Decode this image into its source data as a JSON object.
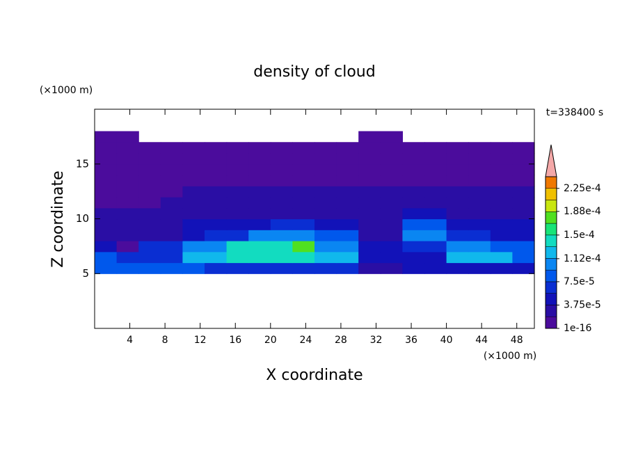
{
  "chart_data": {
    "type": "contour",
    "title": "density of cloud",
    "x_label": "X coordinate",
    "y_label": "Z coordinate",
    "x_unit": "(×1000 m)",
    "y_unit": "(×1000 m)",
    "annotation": "t=338400 s",
    "xlim": [
      0,
      50
    ],
    "ylim": [
      0,
      20
    ],
    "xticks": [
      4,
      8,
      12,
      16,
      20,
      24,
      28,
      32,
      36,
      40,
      44,
      48
    ],
    "yticks": [
      5,
      10,
      15
    ],
    "x": [
      1.25,
      3.75,
      6.25,
      8.75,
      11.25,
      13.75,
      16.25,
      18.75,
      21.25,
      23.75,
      26.25,
      28.75,
      31.25,
      33.75,
      36.25,
      38.75,
      41.25,
      43.75,
      46.25,
      48.75
    ],
    "y": [
      4.5,
      5.5,
      6.5,
      7.5,
      8.5,
      9.5,
      10.5,
      11.5,
      12.5,
      13.5,
      14.5,
      15.5,
      16.5,
      17.5
    ],
    "z": [
      [
        0,
        0,
        0,
        0,
        0,
        0,
        0,
        0,
        0,
        0,
        0,
        0,
        0,
        0,
        0,
        0,
        0,
        0,
        0,
        0
      ],
      [
        8e-05,
        8e-05,
        8e-05,
        8e-05,
        8e-05,
        6e-05,
        6e-05,
        6e-05,
        6e-05,
        6e-05,
        6e-05,
        6e-05,
        3e-05,
        3e-05,
        5e-05,
        5e-05,
        5e-05,
        5e-05,
        5e-05,
        5e-05
      ],
      [
        8e-05,
        7e-05,
        7e-05,
        7e-05,
        0.00012,
        0.00012,
        0.000135,
        0.000135,
        0.000135,
        0.000135,
        0.00012,
        0.00012,
        4e-05,
        4e-05,
        5e-05,
        5e-05,
        0.000115,
        0.000115,
        0.000115,
        9e-05
      ],
      [
        4e-05,
        1e-05,
        6e-05,
        6e-05,
        0.0001,
        0.0001,
        0.000145,
        0.000145,
        0.000145,
        0.00017,
        0.000105,
        0.000105,
        4e-05,
        4e-05,
        6e-05,
        6e-05,
        0.00011,
        0.00011,
        8e-05,
        8e-05
      ],
      [
        3e-05,
        3e-05,
        2e-05,
        2e-05,
        5e-05,
        7e-05,
        7e-05,
        0.00011,
        0.00011,
        0.00011,
        8e-05,
        8e-05,
        3e-05,
        3e-05,
        0.0001,
        0.0001,
        6e-05,
        6e-05,
        4e-05,
        4e-05
      ],
      [
        2.5e-05,
        2.5e-05,
        2.5e-05,
        2.5e-05,
        4.5e-05,
        4.5e-05,
        4.5e-05,
        4.5e-05,
        7e-05,
        7e-05,
        4e-05,
        4e-05,
        3e-05,
        3e-05,
        8e-05,
        8e-05,
        4.5e-05,
        4.5e-05,
        4.5e-05,
        4.5e-05
      ],
      [
        2.8e-05,
        2.8e-05,
        2.8e-05,
        2.8e-05,
        2.8e-05,
        2.8e-05,
        2.8e-05,
        2.8e-05,
        2.8e-05,
        2.8e-05,
        2.8e-05,
        2.8e-05,
        2.8e-05,
        2.8e-05,
        4e-05,
        4e-05,
        2.8e-05,
        2.8e-05,
        2.8e-05,
        2.8e-05
      ],
      [
        1.2e-05,
        1.2e-05,
        1.2e-05,
        2.5e-05,
        2.5e-05,
        2.5e-05,
        2.5e-05,
        2.5e-05,
        2.5e-05,
        2.5e-05,
        2.5e-05,
        2.5e-05,
        2.5e-05,
        2.5e-05,
        2.5e-05,
        2.5e-05,
        2.5e-05,
        2.5e-05,
        2.5e-05,
        2.5e-05
      ],
      [
        1.2e-05,
        1.2e-05,
        1.2e-05,
        1.2e-05,
        2.2e-05,
        2.2e-05,
        2.2e-05,
        2.2e-05,
        2.2e-05,
        2.2e-05,
        2.2e-05,
        2.2e-05,
        2.2e-05,
        2.2e-05,
        2.2e-05,
        2.2e-05,
        2.2e-05,
        2.2e-05,
        2.2e-05,
        2.2e-05
      ],
      [
        1e-05,
        1e-05,
        1e-05,
        1e-05,
        1e-05,
        1e-05,
        1e-05,
        1e-05,
        1e-05,
        1e-05,
        1e-05,
        1e-05,
        1e-05,
        1e-05,
        1e-05,
        1e-05,
        1e-05,
        1e-05,
        1e-05,
        1e-05
      ],
      [
        8e-06,
        8e-06,
        8e-06,
        8e-06,
        8e-06,
        8e-06,
        8e-06,
        8e-06,
        8e-06,
        8e-06,
        8e-06,
        8e-06,
        8e-06,
        8e-06,
        8e-06,
        8e-06,
        8e-06,
        8e-06,
        8e-06,
        8e-06
      ],
      [
        8e-06,
        8e-06,
        8e-06,
        8e-06,
        8e-06,
        8e-06,
        8e-06,
        8e-06,
        8e-06,
        8e-06,
        8e-06,
        8e-06,
        8e-06,
        8e-06,
        8e-06,
        8e-06,
        8e-06,
        8e-06,
        8e-06,
        8e-06
      ],
      [
        8e-06,
        8e-06,
        8e-06,
        8e-06,
        8e-06,
        8e-06,
        8e-06,
        8e-06,
        8e-06,
        8e-06,
        8e-06,
        8e-06,
        8e-06,
        8e-06,
        8e-06,
        8e-06,
        8e-06,
        8e-06,
        8e-06,
        8e-06
      ],
      [
        8e-06,
        8e-06,
        0,
        0,
        0,
        0,
        0,
        0,
        0,
        0,
        0,
        0,
        8e-06,
        8e-06,
        0,
        0,
        0,
        0,
        0,
        0
      ]
    ],
    "levels": [
      1e-16,
      1.875e-05,
      3.75e-05,
      5.625e-05,
      7.5e-05,
      9.375e-05,
      0.0001125,
      0.00013125,
      0.00015,
      0.00016875,
      0.0001875,
      0.00020625,
      0.000225,
      0.00024375
    ],
    "colors": [
      "#4b0c9c",
      "#2a0ea4",
      "#1212b8",
      "#0a2ed2",
      "#0058ec",
      "#0a86f2",
      "#10b8ec",
      "#12dcc0",
      "#18e478",
      "#50e020",
      "#c8e610",
      "#f0c000",
      "#f07800"
    ],
    "extend_color": "#e82010",
    "extend_tip_color": "#f4a8a8",
    "colorbar_ticks": [
      {
        "value": 1e-16,
        "label": "1e-16"
      },
      {
        "value": 3.75e-05,
        "label": "3.75e-5"
      },
      {
        "value": 7.5e-05,
        "label": "7.5e-5"
      },
      {
        "value": 0.000112,
        "label": "1.12e-4"
      },
      {
        "value": 0.00015,
        "label": "1.5e-4"
      },
      {
        "value": 0.000188,
        "label": "1.88e-4"
      },
      {
        "value": 0.000225,
        "label": "2.25e-4"
      }
    ]
  }
}
